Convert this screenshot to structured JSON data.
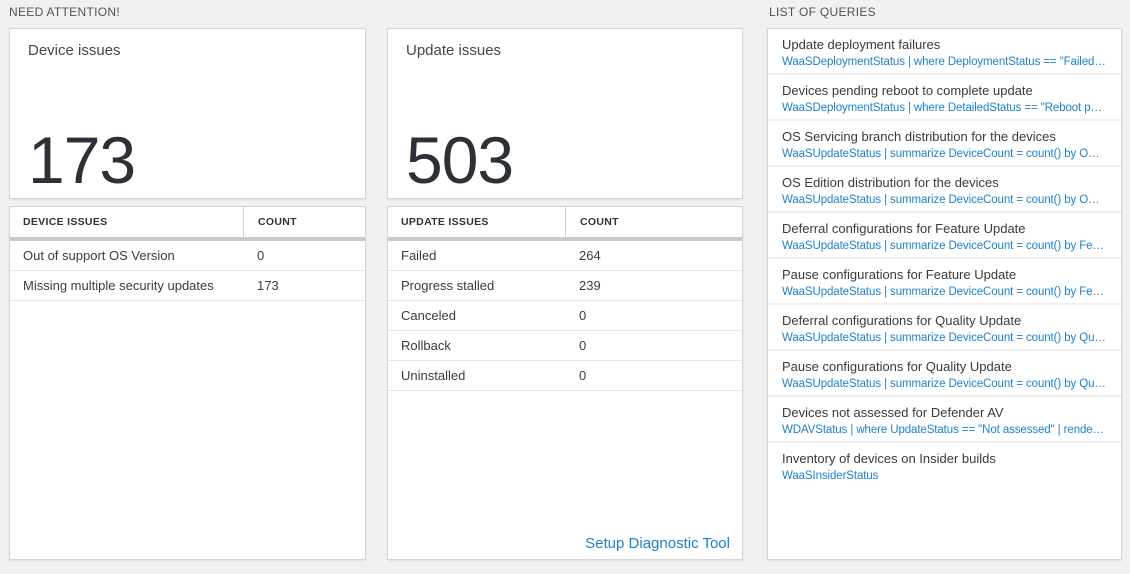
{
  "section_headers": {
    "need_attention": "NEED ATTENTION!",
    "list_of_queries": "LIST OF QUERIES"
  },
  "device_tile": {
    "title": "Device issues",
    "count": "173"
  },
  "update_tile": {
    "title": "Update issues",
    "count": "503"
  },
  "device_table": {
    "headers": {
      "issue": "DEVICE ISSUES",
      "count": "COUNT"
    },
    "rows": [
      {
        "label": "Out of support OS Version",
        "count": "0"
      },
      {
        "label": "Missing multiple security updates",
        "count": "173"
      }
    ]
  },
  "update_table": {
    "headers": {
      "issue": "UPDATE ISSUES",
      "count": "COUNT"
    },
    "rows": [
      {
        "label": "Failed",
        "count": "264"
      },
      {
        "label": "Progress stalled",
        "count": "239"
      },
      {
        "label": "Canceled",
        "count": "0"
      },
      {
        "label": "Rollback",
        "count": "0"
      },
      {
        "label": "Uninstalled",
        "count": "0"
      }
    ],
    "link_label": "Setup Diagnostic Tool"
  },
  "queries": {
    "items": [
      {
        "title": "Update deployment failures",
        "query": "WaaSDeploymentStatus | where DeploymentStatus == \"Failed\" |..."
      },
      {
        "title": "Devices pending reboot to complete update",
        "query": "WaaSDeploymentStatus | where DetailedStatus == \"Reboot pend..."
      },
      {
        "title": "OS Servicing branch distribution for the devices",
        "query": "WaaSUpdateStatus | summarize DeviceCount = count() by OSSer..."
      },
      {
        "title": "OS Edition distribution for the devices",
        "query": "WaaSUpdateStatus | summarize DeviceCount = count() by OSEdit..."
      },
      {
        "title": "Deferral configurations for Feature Update",
        "query": "WaaSUpdateStatus | summarize DeviceCount = count() by Featur..."
      },
      {
        "title": "Pause configurations for Feature Update",
        "query": "WaaSUpdateStatus | summarize DeviceCount = count() by Featur..."
      },
      {
        "title": "Deferral configurations for Quality Update",
        "query": "WaaSUpdateStatus | summarize DeviceCount = count() by Qualit..."
      },
      {
        "title": "Pause configurations for Quality Update",
        "query": "WaaSUpdateStatus | summarize DeviceCount = count() by Qualit..."
      },
      {
        "title": "Devices not assessed for Defender AV",
        "query": "WDAVStatus | where UpdateStatus == \"Not assessed\" | render ta..."
      },
      {
        "title": "Inventory of devices on Insider builds",
        "query": "WaaSInsiderStatus"
      }
    ]
  },
  "colors": {
    "accent_blue": "#1e81ce",
    "background": "#f1f1f1",
    "thick_separator": "#c9c9c9",
    "number_text": "#2b3137"
  }
}
